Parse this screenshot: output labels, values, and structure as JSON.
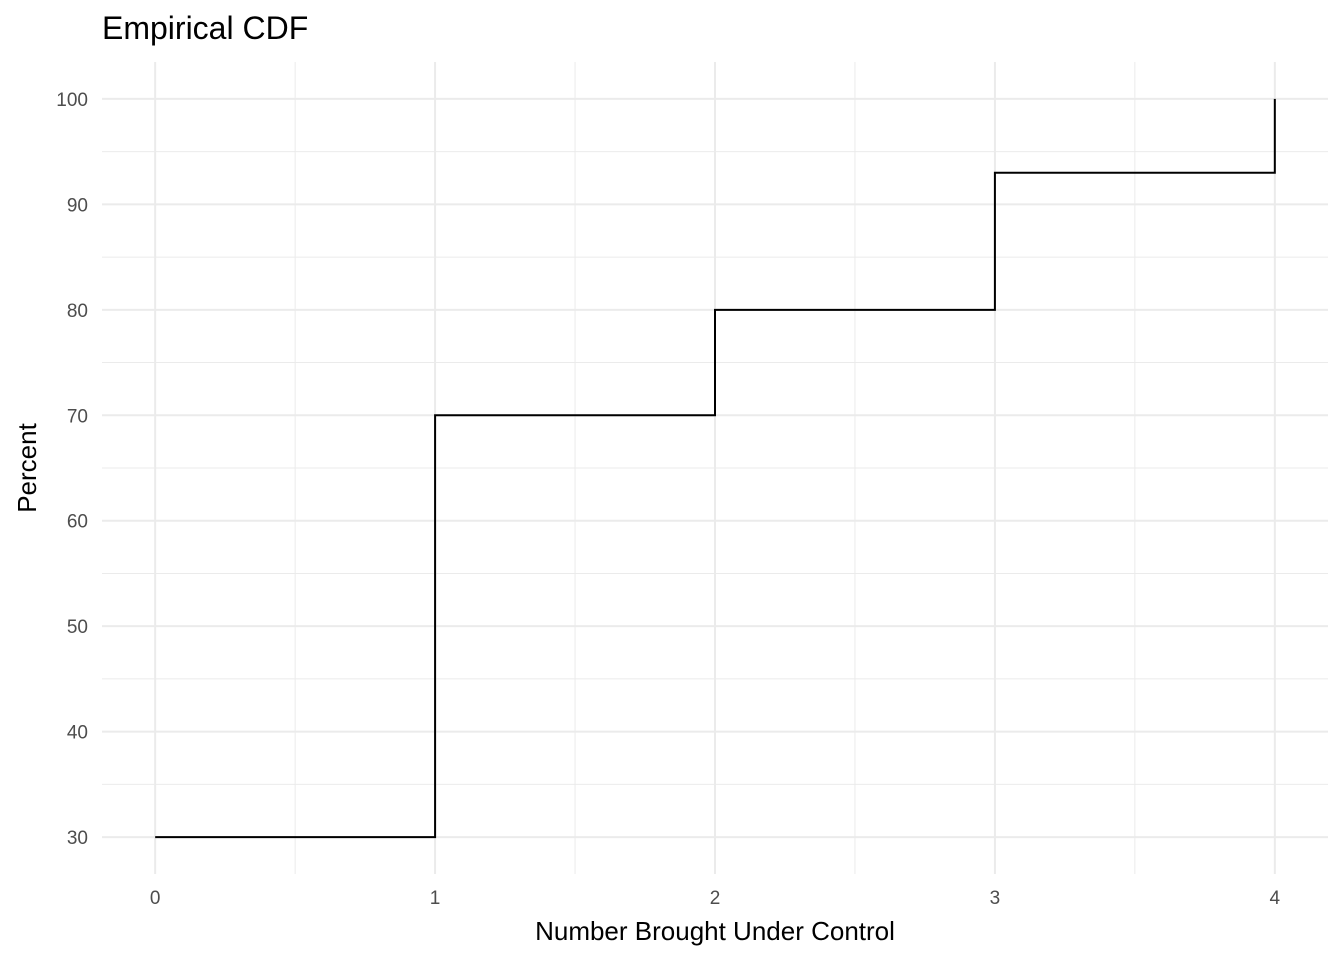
{
  "chart_data": {
    "type": "line",
    "subtype": "step",
    "title": "Empirical CDF",
    "xlabel": "Number Brought Under Control",
    "ylabel": "Percent",
    "x_ticks": [
      0,
      1,
      2,
      3,
      4
    ],
    "y_ticks": [
      30,
      40,
      50,
      60,
      70,
      80,
      90,
      100
    ],
    "xlim": [
      -0.19,
      4.19
    ],
    "ylim": [
      26.5,
      103.5
    ],
    "grid": true,
    "series": [
      {
        "x": [
          0,
          1,
          2,
          3,
          4
        ],
        "y": [
          30,
          70,
          80,
          93,
          100
        ],
        "color": "#000000"
      }
    ],
    "colors": {
      "grid": "#ebebeb",
      "tick_text": "#4d4d4d",
      "line": "#000000",
      "background": "#ffffff"
    }
  }
}
